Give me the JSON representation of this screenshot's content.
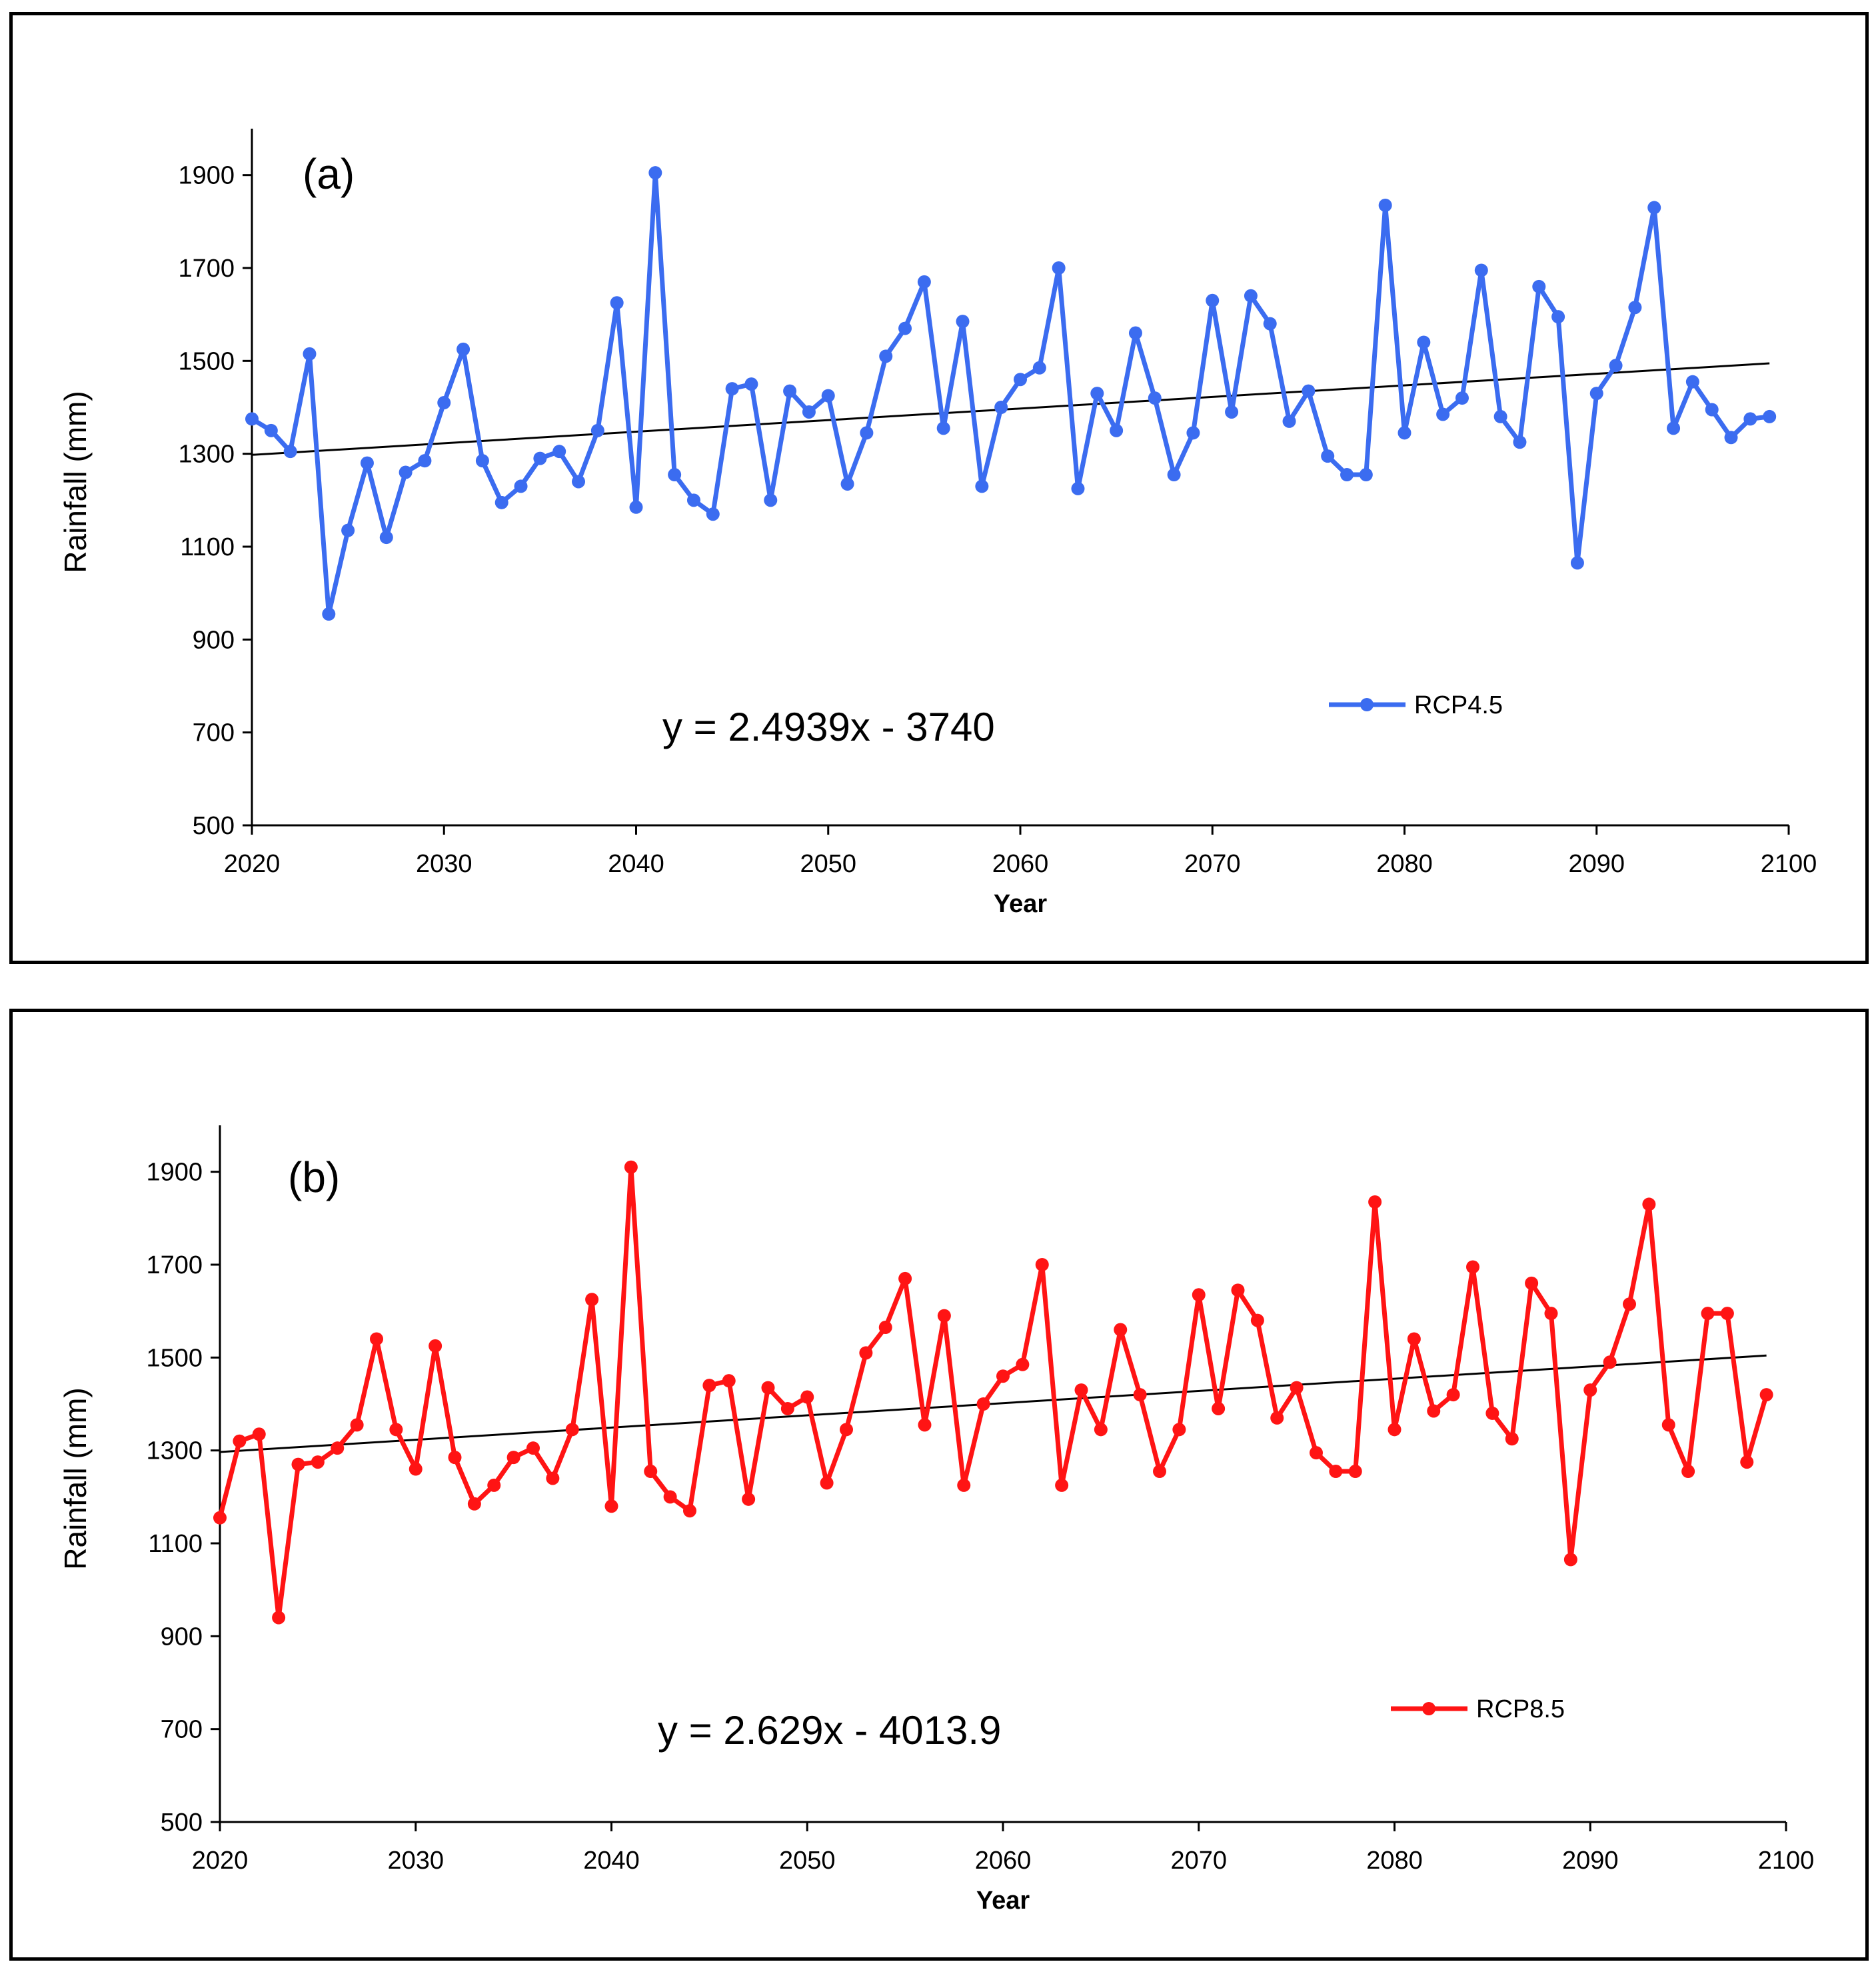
{
  "chart_data": [
    {
      "type": "line",
      "panel_label": "(a)",
      "title": "",
      "xlabel": "Year",
      "ylabel": "Rainfall (mm)",
      "xlim": [
        2020,
        2100
      ],
      "ylim": [
        500,
        2000
      ],
      "xticks": [
        2020,
        2030,
        2040,
        2050,
        2060,
        2070,
        2080,
        2090,
        2100
      ],
      "yticks": [
        500,
        700,
        900,
        1100,
        1300,
        1500,
        1700,
        1900
      ],
      "grid": false,
      "legend_position": "right",
      "equation": "y = 2.4939x - 3740",
      "trendline": {
        "slope": 2.4939,
        "intercept": -3740,
        "x_start": 2020,
        "x_end": 2099
      },
      "color": "#3b6cf0",
      "series": [
        {
          "name": "RCP4.5",
          "x": [
            2020,
            2021,
            2022,
            2023,
            2024,
            2025,
            2026,
            2027,
            2028,
            2029,
            2030,
            2031,
            2032,
            2033,
            2034,
            2035,
            2036,
            2037,
            2038,
            2039,
            2040,
            2041,
            2042,
            2043,
            2044,
            2045,
            2046,
            2047,
            2048,
            2049,
            2050,
            2051,
            2052,
            2053,
            2054,
            2055,
            2056,
            2057,
            2058,
            2059,
            2060,
            2061,
            2062,
            2063,
            2064,
            2065,
            2066,
            2067,
            2068,
            2069,
            2070,
            2071,
            2072,
            2073,
            2074,
            2075,
            2076,
            2077,
            2078,
            2079,
            2080,
            2081,
            2082,
            2083,
            2084,
            2085,
            2086,
            2087,
            2088,
            2089,
            2090,
            2091,
            2092,
            2093,
            2094,
            2095,
            2096,
            2097,
            2098,
            2099
          ],
          "values": [
            1375,
            1350,
            1305,
            1515,
            955,
            1135,
            1280,
            1120,
            1260,
            1285,
            1410,
            1525,
            1285,
            1195,
            1230,
            1290,
            1305,
            1240,
            1350,
            1625,
            1185,
            1905,
            1255,
            1200,
            1170,
            1440,
            1450,
            1200,
            1435,
            1390,
            1425,
            1235,
            1345,
            1510,
            1570,
            1670,
            1355,
            1585,
            1230,
            1400,
            1460,
            1485,
            1700,
            1225,
            1430,
            1350,
            1560,
            1420,
            1255,
            1345,
            1630,
            1390,
            1640,
            1580,
            1370,
            1435,
            1295,
            1255,
            1255,
            1835,
            1345,
            1540,
            1385,
            1420,
            1695,
            1380,
            1325,
            1660,
            1595,
            1065,
            1430,
            1490,
            1615,
            1830,
            1355,
            1455,
            1395,
            1335,
            1375,
            1380
          ]
        }
      ]
    },
    {
      "type": "line",
      "panel_label": "(b)",
      "title": "",
      "xlabel": "Year",
      "ylabel": "Rainfall (mm)",
      "xlim": [
        2020,
        2100
      ],
      "ylim": [
        500,
        2000
      ],
      "xticks": [
        2020,
        2030,
        2040,
        2050,
        2060,
        2070,
        2080,
        2090,
        2100
      ],
      "yticks": [
        500,
        700,
        900,
        1100,
        1300,
        1500,
        1700,
        1900
      ],
      "grid": false,
      "legend_position": "right",
      "equation": "y = 2.629x - 4013.9",
      "trendline": {
        "slope": 2.629,
        "intercept": -4013.9,
        "x_start": 2020,
        "x_end": 2099
      },
      "color": "#ff1414",
      "series": [
        {
          "name": "RCP8.5",
          "x": [
            2020,
            2021,
            2022,
            2023,
            2024,
            2025,
            2026,
            2027,
            2028,
            2029,
            2030,
            2031,
            2032,
            2033,
            2034,
            2035,
            2036,
            2037,
            2038,
            2039,
            2040,
            2041,
            2042,
            2043,
            2044,
            2045,
            2046,
            2047,
            2048,
            2049,
            2050,
            2051,
            2052,
            2053,
            2054,
            2055,
            2056,
            2057,
            2058,
            2059,
            2060,
            2061,
            2062,
            2063,
            2064,
            2065,
            2066,
            2067,
            2068,
            2069,
            2070,
            2071,
            2072,
            2073,
            2074,
            2075,
            2076,
            2077,
            2078,
            2079,
            2080,
            2081,
            2082,
            2083,
            2084,
            2085,
            2086,
            2087,
            2088,
            2089,
            2090,
            2091,
            2092,
            2093,
            2094,
            2095,
            2096,
            2097,
            2098,
            2099
          ],
          "values": [
            1155,
            1320,
            1335,
            940,
            1270,
            1275,
            1305,
            1355,
            1540,
            1345,
            1260,
            1525,
            1285,
            1185,
            1225,
            1285,
            1305,
            1240,
            1345,
            1625,
            1180,
            1910,
            1255,
            1200,
            1170,
            1440,
            1450,
            1195,
            1435,
            1390,
            1415,
            1230,
            1345,
            1510,
            1565,
            1670,
            1355,
            1590,
            1225,
            1400,
            1460,
            1485,
            1700,
            1225,
            1430,
            1345,
            1560,
            1420,
            1255,
            1345,
            1635,
            1390,
            1645,
            1580,
            1370,
            1435,
            1295,
            1255,
            1255,
            1835,
            1345,
            1540,
            1385,
            1420,
            1695,
            1380,
            1325,
            1660,
            1595,
            1065,
            1430,
            1490,
            1615,
            1830,
            1355,
            1255,
            1595,
            1595,
            1275,
            1420
          ]
        }
      ]
    }
  ]
}
